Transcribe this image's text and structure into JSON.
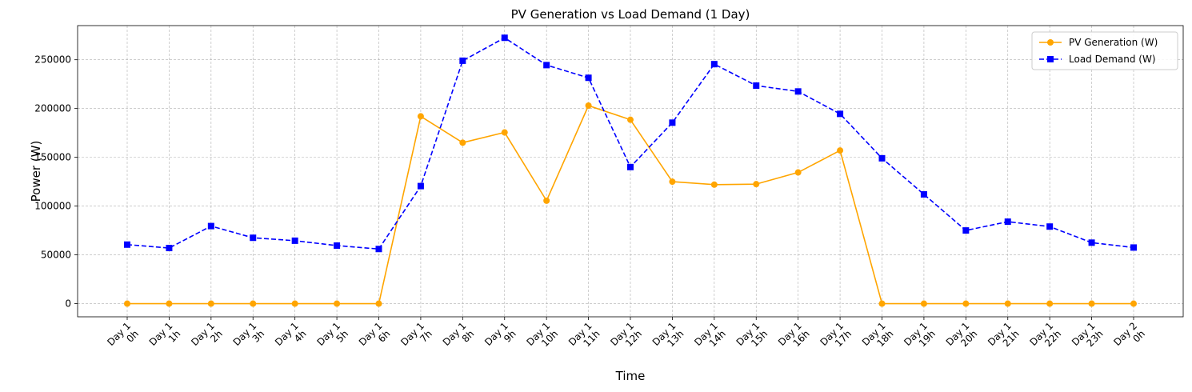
{
  "chart_data": {
    "type": "line",
    "title": "PV Generation vs Load Demand (1 Day)",
    "xlabel": "Time",
    "ylabel": "Power (W)",
    "categories": [
      [
        "Day 1",
        "0h"
      ],
      [
        "Day 1",
        "1h"
      ],
      [
        "Day 1",
        "2h"
      ],
      [
        "Day 1",
        "3h"
      ],
      [
        "Day 1",
        "4h"
      ],
      [
        "Day 1",
        "5h"
      ],
      [
        "Day 1",
        "6h"
      ],
      [
        "Day 1",
        "7h"
      ],
      [
        "Day 1",
        "8h"
      ],
      [
        "Day 1",
        "9h"
      ],
      [
        "Day 1",
        "10h"
      ],
      [
        "Day 1",
        "11h"
      ],
      [
        "Day 1",
        "12h"
      ],
      [
        "Day 1",
        "13h"
      ],
      [
        "Day 1",
        "14h"
      ],
      [
        "Day 1",
        "15h"
      ],
      [
        "Day 1",
        "16h"
      ],
      [
        "Day 1",
        "17h"
      ],
      [
        "Day 1",
        "18h"
      ],
      [
        "Day 1",
        "19h"
      ],
      [
        "Day 1",
        "20h"
      ],
      [
        "Day 1",
        "21h"
      ],
      [
        "Day 1",
        "22h"
      ],
      [
        "Day 1",
        "23h"
      ],
      [
        "Day 2",
        "0h"
      ]
    ],
    "ylim": [
      -13500,
      285000
    ],
    "yticks": [
      0,
      50000,
      100000,
      150000,
      200000,
      250000
    ],
    "grid": true,
    "legend_position": "top-right",
    "series": [
      {
        "name": "PV Generation (W)",
        "color": "#ffa500",
        "marker": "circle",
        "linestyle": "solid",
        "values": [
          0,
          0,
          0,
          0,
          0,
          0,
          0,
          192000,
          165000,
          175500,
          105500,
          203000,
          188500,
          125000,
          122000,
          122500,
          134500,
          157000,
          0,
          0,
          0,
          0,
          0,
          0,
          0
        ]
      },
      {
        "name": "Load Demand (W)",
        "color": "#0000ff",
        "marker": "square",
        "linestyle": "dashed",
        "values": [
          60500,
          57000,
          79500,
          67500,
          64500,
          59500,
          56000,
          120500,
          249000,
          272500,
          244500,
          231500,
          140000,
          185500,
          245500,
          223500,
          217500,
          194500,
          149000,
          112000,
          75000,
          84000,
          79000,
          62500,
          57500
        ]
      }
    ]
  }
}
